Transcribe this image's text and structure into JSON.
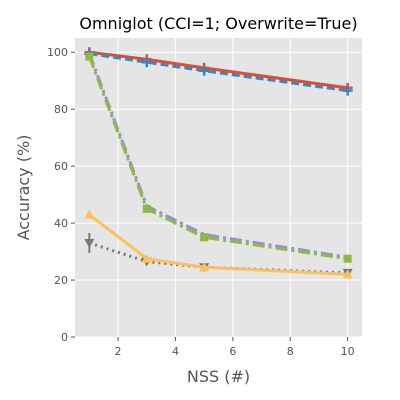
{
  "chart_data": {
    "type": "line",
    "title": "Omniglot (CCI=1; Overwrite=True)",
    "xlabel": "NSS (#)",
    "ylabel": "Accuracy (%)",
    "xlim": [
      0.5,
      10.5
    ],
    "ylim": [
      0,
      105
    ],
    "xticks": [
      2,
      4,
      6,
      8,
      10
    ],
    "yticks": [
      0,
      20,
      40,
      60,
      80,
      100
    ],
    "grid": true,
    "background": "#e5e5e5",
    "series": [
      {
        "color": "#e24a33",
        "linestyle": "solid",
        "marker": "plus",
        "x": [
          1,
          3,
          5,
          10
        ],
        "y": [
          100,
          97.5,
          94.5,
          87.5
        ],
        "err": [
          0.4,
          0.5,
          0.5,
          0.6
        ]
      },
      {
        "color": "#348abd",
        "linestyle": "dashed",
        "marker": "plus",
        "x": [
          1,
          3,
          5,
          10
        ],
        "y": [
          99.5,
          96.5,
          93.5,
          86.5
        ],
        "err": [
          0.4,
          0.5,
          0.5,
          0.6
        ]
      },
      {
        "color": "#988ed5",
        "linestyle": "dashdot",
        "marker": "none",
        "x": [
          1,
          3,
          5,
          10
        ],
        "y": [
          99.5,
          46,
          36,
          28
        ],
        "err": [
          0.4,
          0.6,
          0.5,
          0.5
        ]
      },
      {
        "color": "#8eba42",
        "linestyle": "dashdot",
        "marker": "square",
        "x": [
          1,
          3,
          5,
          10
        ],
        "y": [
          98.5,
          45,
          35,
          27.5
        ],
        "err": [
          0.4,
          0.6,
          0.5,
          0.5
        ]
      },
      {
        "color": "#777777",
        "linestyle": "dotted",
        "marker": "triangle-down",
        "x": [
          1,
          3,
          5,
          10
        ],
        "y": [
          33,
          26.5,
          24.5,
          22.5
        ],
        "err": [
          3.5,
          0.8,
          0.6,
          0.6
        ]
      },
      {
        "color": "#fbc15e",
        "linestyle": "solid",
        "marker": "triangle-up",
        "x": [
          1,
          3,
          5,
          10
        ],
        "y": [
          43,
          27.5,
          24.5,
          22
        ],
        "err": [
          0.5,
          0.5,
          0.5,
          0.5
        ]
      }
    ]
  }
}
